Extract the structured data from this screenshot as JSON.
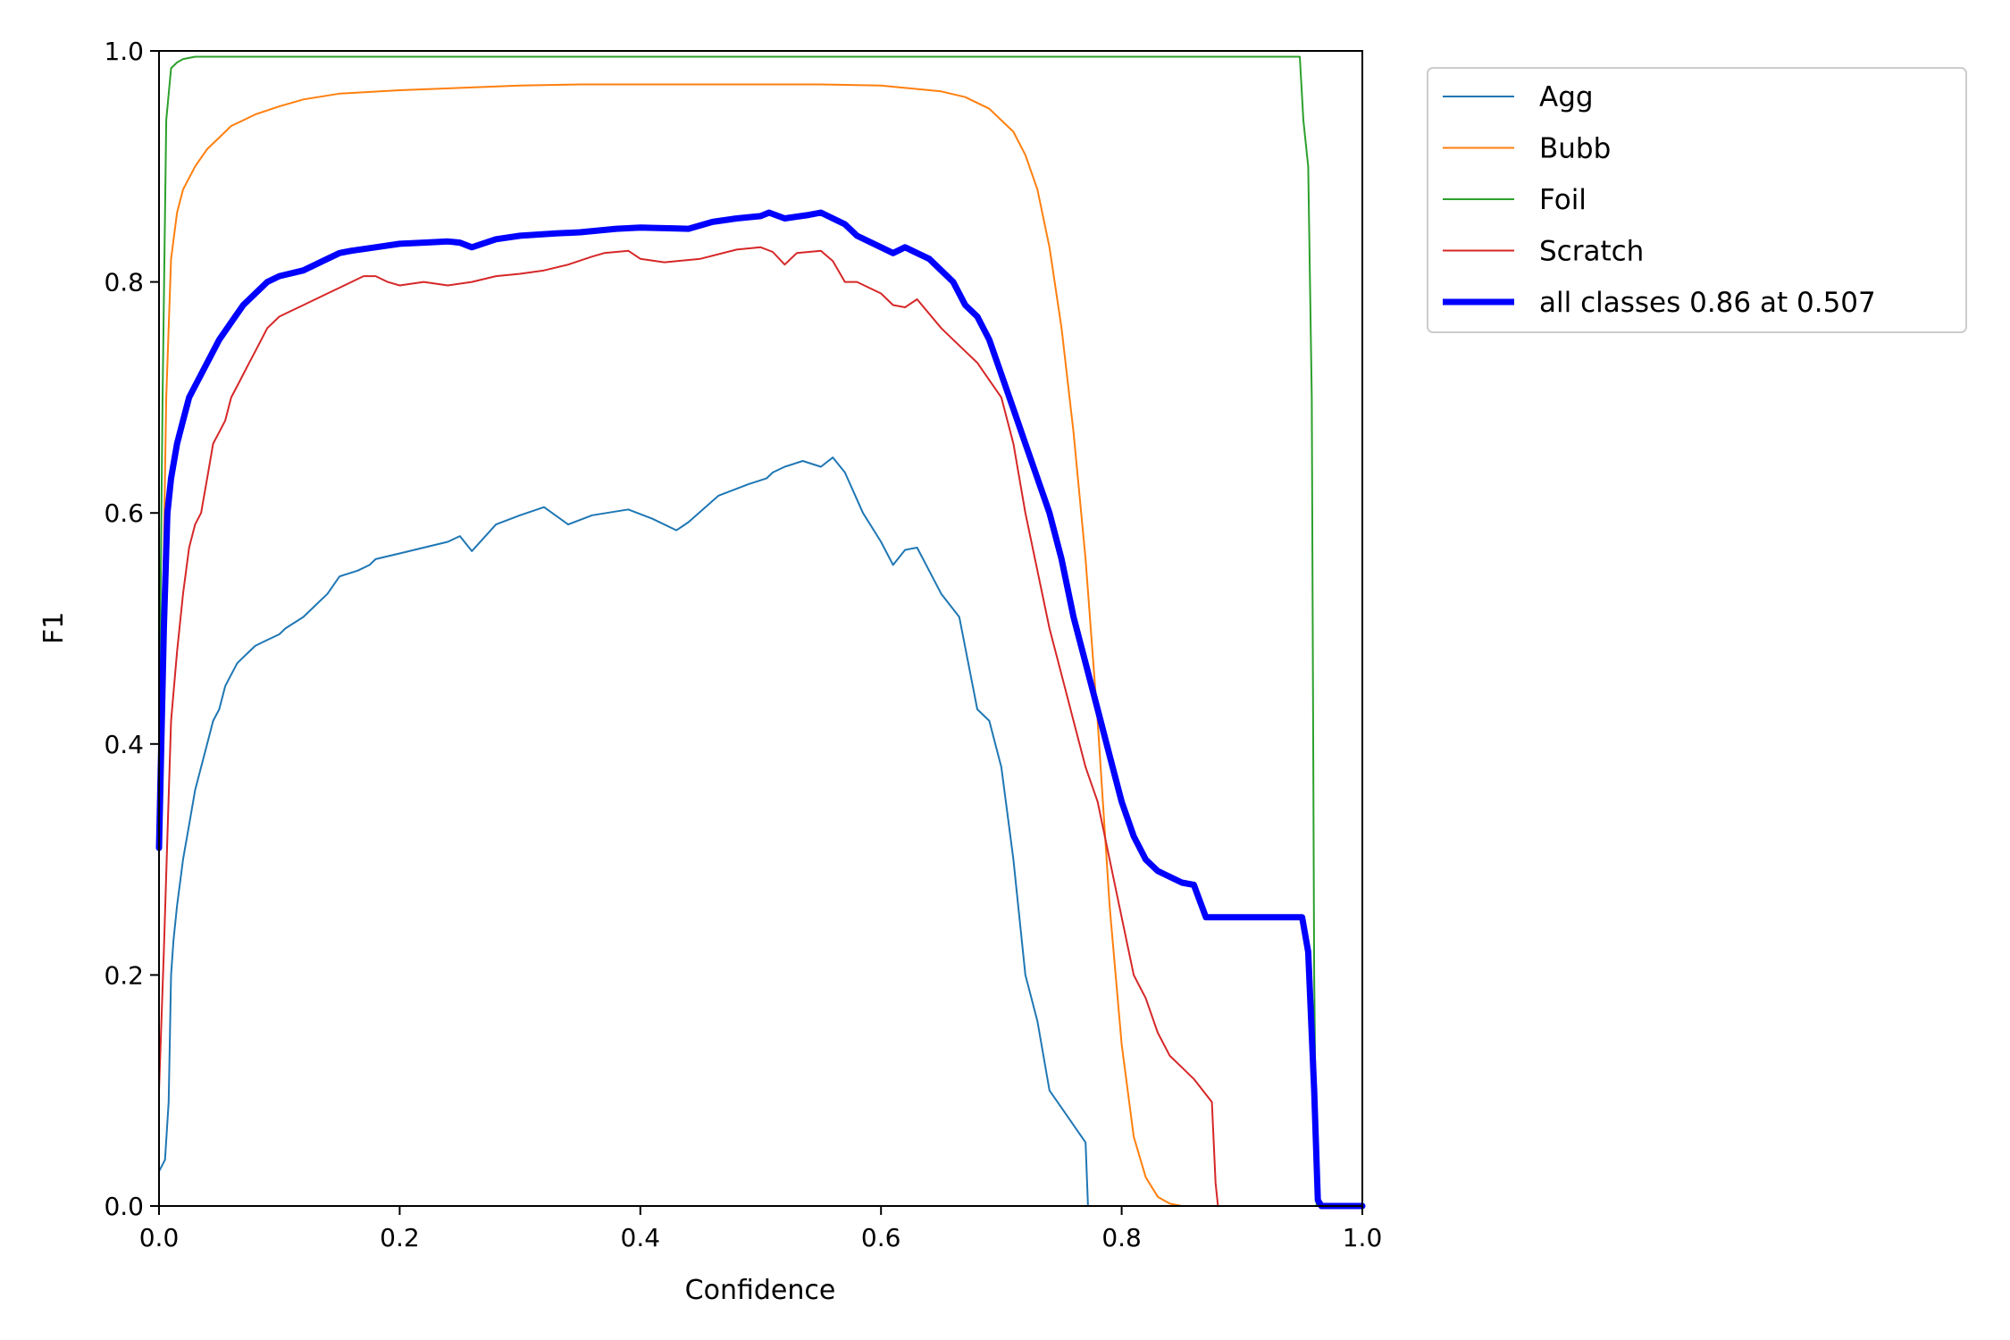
{
  "chart_data": {
    "type": "line",
    "title": "",
    "xlabel": "Confidence",
    "ylabel": "F1",
    "xlim": [
      0.0,
      1.0
    ],
    "ylim": [
      0.0,
      1.0
    ],
    "xticks": [
      "0.0",
      "0.2",
      "0.4",
      "0.6",
      "0.8",
      "1.0"
    ],
    "yticks": [
      "0.0",
      "0.2",
      "0.4",
      "0.6",
      "0.8",
      "1.0"
    ],
    "grid": false,
    "legend_position": "outside top-right",
    "series": [
      {
        "name": "Agg",
        "color": "#1f77b4",
        "x": [
          0.0,
          0.005,
          0.008,
          0.01,
          0.012,
          0.015,
          0.02,
          0.025,
          0.03,
          0.035,
          0.04,
          0.045,
          0.05,
          0.055,
          0.06,
          0.065,
          0.07,
          0.075,
          0.08,
          0.09,
          0.1,
          0.105,
          0.12,
          0.13,
          0.14,
          0.15,
          0.165,
          0.175,
          0.18,
          0.2,
          0.22,
          0.24,
          0.25,
          0.26,
          0.28,
          0.3,
          0.32,
          0.34,
          0.36,
          0.39,
          0.41,
          0.43,
          0.44,
          0.465,
          0.49,
          0.505,
          0.51,
          0.52,
          0.535,
          0.55,
          0.56,
          0.57,
          0.585,
          0.6,
          0.61,
          0.62,
          0.63,
          0.64,
          0.65,
          0.665,
          0.68,
          0.69,
          0.7,
          0.71,
          0.72,
          0.73,
          0.74,
          0.75,
          0.77,
          0.772,
          0.8,
          0.9,
          1.0
        ],
        "y": [
          0.03,
          0.04,
          0.09,
          0.2,
          0.23,
          0.26,
          0.3,
          0.33,
          0.36,
          0.38,
          0.4,
          0.42,
          0.43,
          0.45,
          0.46,
          0.47,
          0.475,
          0.48,
          0.485,
          0.49,
          0.495,
          0.5,
          0.51,
          0.52,
          0.53,
          0.545,
          0.55,
          0.555,
          0.56,
          0.565,
          0.57,
          0.575,
          0.58,
          0.567,
          0.59,
          0.598,
          0.605,
          0.59,
          0.598,
          0.603,
          0.595,
          0.585,
          0.592,
          0.615,
          0.625,
          0.63,
          0.635,
          0.64,
          0.645,
          0.64,
          0.648,
          0.635,
          0.6,
          0.575,
          0.555,
          0.568,
          0.57,
          0.55,
          0.53,
          0.51,
          0.43,
          0.42,
          0.38,
          0.3,
          0.2,
          0.16,
          0.1,
          0.085,
          0.055,
          0.0,
          0.0,
          0.0,
          0.0
        ]
      },
      {
        "name": "Bubb",
        "color": "#ff7f0e",
        "x": [
          0.0,
          0.003,
          0.006,
          0.01,
          0.015,
          0.02,
          0.03,
          0.04,
          0.05,
          0.06,
          0.07,
          0.08,
          0.1,
          0.12,
          0.15,
          0.2,
          0.25,
          0.3,
          0.35,
          0.4,
          0.45,
          0.5,
          0.55,
          0.6,
          0.62,
          0.65,
          0.67,
          0.69,
          0.7,
          0.71,
          0.72,
          0.73,
          0.74,
          0.75,
          0.76,
          0.77,
          0.78,
          0.79,
          0.8,
          0.81,
          0.82,
          0.83,
          0.84,
          0.85,
          0.86,
          1.0
        ],
        "y": [
          0.31,
          0.5,
          0.7,
          0.82,
          0.86,
          0.88,
          0.9,
          0.915,
          0.925,
          0.935,
          0.94,
          0.945,
          0.952,
          0.958,
          0.963,
          0.966,
          0.968,
          0.97,
          0.971,
          0.971,
          0.971,
          0.971,
          0.971,
          0.97,
          0.968,
          0.965,
          0.96,
          0.95,
          0.94,
          0.93,
          0.91,
          0.88,
          0.83,
          0.76,
          0.67,
          0.56,
          0.42,
          0.26,
          0.14,
          0.06,
          0.025,
          0.008,
          0.002,
          0.0,
          0.0,
          0.0
        ]
      },
      {
        "name": "Foil",
        "color": "#2ca02c",
        "x": [
          0.0,
          0.003,
          0.006,
          0.01,
          0.015,
          0.02,
          0.03,
          0.1,
          0.2,
          0.4,
          0.6,
          0.8,
          0.9,
          0.94,
          0.948,
          0.951,
          0.955,
          0.958,
          0.96,
          0.962,
          1.0
        ],
        "y": [
          0.4,
          0.7,
          0.94,
          0.985,
          0.99,
          0.993,
          0.995,
          0.995,
          0.995,
          0.995,
          0.995,
          0.995,
          0.995,
          0.995,
          0.995,
          0.94,
          0.9,
          0.7,
          0.2,
          0.0,
          0.0
        ]
      },
      {
        "name": "Scratch",
        "color": "#d62728",
        "x": [
          0.0,
          0.004,
          0.007,
          0.01,
          0.015,
          0.02,
          0.025,
          0.03,
          0.035,
          0.04,
          0.045,
          0.05,
          0.055,
          0.06,
          0.065,
          0.07,
          0.075,
          0.08,
          0.085,
          0.09,
          0.1,
          0.11,
          0.12,
          0.13,
          0.14,
          0.15,
          0.16,
          0.17,
          0.18,
          0.19,
          0.2,
          0.22,
          0.24,
          0.26,
          0.28,
          0.3,
          0.32,
          0.34,
          0.36,
          0.37,
          0.39,
          0.4,
          0.42,
          0.45,
          0.48,
          0.5,
          0.51,
          0.52,
          0.53,
          0.55,
          0.56,
          0.57,
          0.58,
          0.6,
          0.61,
          0.62,
          0.63,
          0.65,
          0.66,
          0.67,
          0.68,
          0.7,
          0.71,
          0.72,
          0.73,
          0.74,
          0.75,
          0.76,
          0.77,
          0.78,
          0.79,
          0.8,
          0.81,
          0.82,
          0.83,
          0.84,
          0.85,
          0.86,
          0.875,
          0.878,
          0.88,
          0.9,
          1.0
        ],
        "y": [
          0.1,
          0.22,
          0.32,
          0.42,
          0.48,
          0.53,
          0.57,
          0.59,
          0.6,
          0.63,
          0.66,
          0.67,
          0.68,
          0.7,
          0.71,
          0.72,
          0.73,
          0.74,
          0.75,
          0.76,
          0.77,
          0.775,
          0.78,
          0.785,
          0.79,
          0.795,
          0.8,
          0.805,
          0.805,
          0.8,
          0.797,
          0.8,
          0.797,
          0.8,
          0.805,
          0.807,
          0.81,
          0.815,
          0.822,
          0.825,
          0.827,
          0.82,
          0.817,
          0.82,
          0.828,
          0.83,
          0.826,
          0.815,
          0.825,
          0.827,
          0.818,
          0.8,
          0.8,
          0.79,
          0.78,
          0.778,
          0.785,
          0.76,
          0.75,
          0.74,
          0.73,
          0.7,
          0.66,
          0.6,
          0.55,
          0.5,
          0.46,
          0.42,
          0.38,
          0.35,
          0.3,
          0.25,
          0.2,
          0.18,
          0.15,
          0.13,
          0.12,
          0.11,
          0.09,
          0.02,
          0.0,
          0.0,
          0.0
        ]
      },
      {
        "name": "all classes 0.86 at 0.507",
        "color": "#0000ff",
        "x": [
          0.0,
          0.004,
          0.007,
          0.01,
          0.015,
          0.02,
          0.025,
          0.03,
          0.04,
          0.05,
          0.06,
          0.07,
          0.08,
          0.09,
          0.1,
          0.12,
          0.14,
          0.15,
          0.16,
          0.18,
          0.2,
          0.22,
          0.24,
          0.25,
          0.26,
          0.28,
          0.3,
          0.33,
          0.35,
          0.38,
          0.4,
          0.44,
          0.46,
          0.48,
          0.5,
          0.507,
          0.52,
          0.54,
          0.55,
          0.56,
          0.57,
          0.58,
          0.6,
          0.61,
          0.62,
          0.63,
          0.64,
          0.65,
          0.66,
          0.67,
          0.68,
          0.69,
          0.7,
          0.71,
          0.72,
          0.73,
          0.74,
          0.75,
          0.76,
          0.77,
          0.78,
          0.79,
          0.8,
          0.81,
          0.82,
          0.83,
          0.84,
          0.85,
          0.86,
          0.87,
          0.88,
          0.89,
          0.9,
          0.93,
          0.95,
          0.955,
          0.96,
          0.963,
          0.966,
          1.0
        ],
        "y": [
          0.31,
          0.5,
          0.6,
          0.63,
          0.66,
          0.68,
          0.7,
          0.71,
          0.73,
          0.75,
          0.765,
          0.78,
          0.79,
          0.8,
          0.805,
          0.81,
          0.82,
          0.825,
          0.827,
          0.83,
          0.833,
          0.834,
          0.835,
          0.834,
          0.83,
          0.837,
          0.84,
          0.842,
          0.843,
          0.846,
          0.847,
          0.846,
          0.852,
          0.855,
          0.857,
          0.86,
          0.855,
          0.858,
          0.86,
          0.855,
          0.85,
          0.84,
          0.83,
          0.825,
          0.83,
          0.825,
          0.82,
          0.81,
          0.8,
          0.78,
          0.77,
          0.75,
          0.72,
          0.69,
          0.66,
          0.63,
          0.6,
          0.56,
          0.51,
          0.47,
          0.43,
          0.39,
          0.35,
          0.32,
          0.3,
          0.29,
          0.285,
          0.28,
          0.278,
          0.25,
          0.25,
          0.25,
          0.25,
          0.25,
          0.25,
          0.22,
          0.1,
          0.005,
          0.0,
          0.0
        ]
      }
    ]
  }
}
